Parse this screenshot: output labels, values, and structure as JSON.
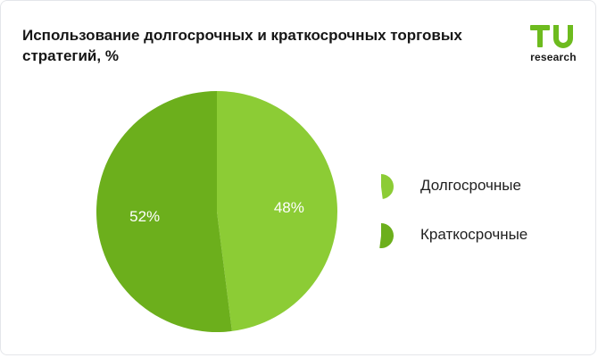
{
  "logo": {
    "letters": "TU",
    "text": "research",
    "color": "#6dbb1e"
  },
  "chart_data": {
    "type": "pie",
    "title": "Использование долгосрочных и краткосрочных торговых стратегий, %",
    "start_angle_deg": 0,
    "direction": "clockwise",
    "slices": [
      {
        "name": "Долгосрочные",
        "value": 48,
        "label": "48%",
        "color": "#8ccc35"
      },
      {
        "name": "Краткосрочные",
        "value": 52,
        "label": "52%",
        "color": "#6caf1c"
      }
    ],
    "legend_position": "right"
  }
}
